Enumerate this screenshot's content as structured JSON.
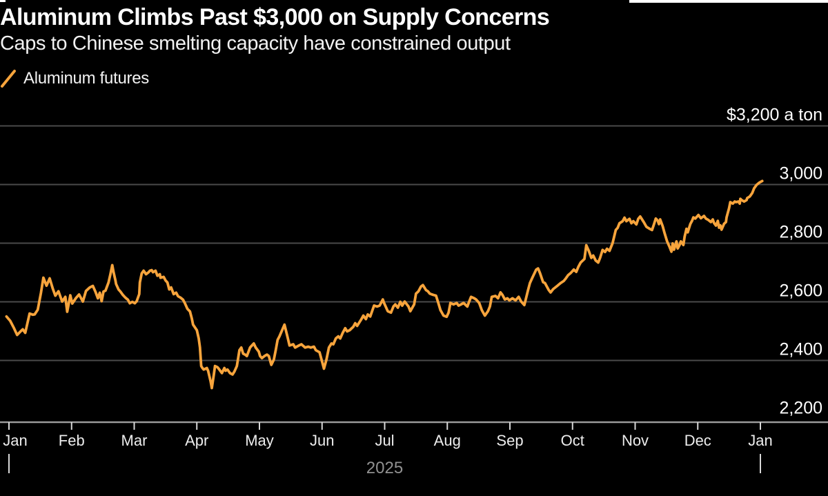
{
  "header": {
    "title": "Aluminum Climbs Past $3,000 on Supply Concerns",
    "subtitle": "Caps to Chinese smelting capacity have constrained output"
  },
  "legend": {
    "label": "Aluminum futures",
    "swatch_color": "#f7a43c"
  },
  "colors": {
    "background": "#000000",
    "line": "#f7a43c",
    "gridline": "#4a4a4a",
    "axis_line": "#9a9a9a",
    "tick_mark": "#d8d8d8",
    "y_label_text": "#ffffff",
    "month_label_text": "#ededed",
    "year_label_text": "#919191",
    "title_text": "#ffffff",
    "subtitle_text": "#f2f2f2"
  },
  "chart_data": {
    "type": "line",
    "title": "Aluminum Climbs Past $3,000 on Supply Concerns",
    "subtitle": "Caps to Chinese smelting capacity have constrained output",
    "series_name": "Aluminum futures",
    "unit_annotation": "$3,200 a ton",
    "grid": "horizontal-on",
    "legend_position": "top-left",
    "ylim": [
      2200,
      3260
    ],
    "x_unit": "months since Jan 2025 (0 = Jan 2025, 12 = Jan 2026)",
    "x_ticks": [
      "Jan",
      "Feb",
      "Mar",
      "Apr",
      "May",
      "Jun",
      "Jul",
      "Aug",
      "Sep",
      "Oct",
      "Nov",
      "Dec",
      "Jan"
    ],
    "year_label": "2025",
    "year_marker_months": [
      0,
      12
    ],
    "y_ticks": [
      {
        "value": 3200,
        "label": "$3,200 a ton"
      },
      {
        "value": 3000,
        "label": "3,000"
      },
      {
        "value": 2800,
        "label": "2,800"
      },
      {
        "value": 2600,
        "label": "2,600"
      },
      {
        "value": 2400,
        "label": "2,400"
      },
      {
        "value": 2200,
        "label": "2,200"
      }
    ],
    "points": [
      [
        -0.04,
        2550
      ],
      [
        0.02,
        2535
      ],
      [
        0.08,
        2510
      ],
      [
        0.13,
        2487
      ],
      [
        0.18,
        2498
      ],
      [
        0.22,
        2506
      ],
      [
        0.26,
        2494
      ],
      [
        0.33,
        2560
      ],
      [
        0.38,
        2556
      ],
      [
        0.41,
        2557
      ],
      [
        0.46,
        2573
      ],
      [
        0.51,
        2630
      ],
      [
        0.55,
        2682
      ],
      [
        0.6,
        2655
      ],
      [
        0.65,
        2680
      ],
      [
        0.7,
        2645
      ],
      [
        0.74,
        2621
      ],
      [
        0.79,
        2636
      ],
      [
        0.85,
        2601
      ],
      [
        0.9,
        2617
      ],
      [
        0.93,
        2566
      ],
      [
        0.98,
        2622
      ],
      [
        1.01,
        2594
      ],
      [
        1.07,
        2613
      ],
      [
        1.12,
        2625
      ],
      [
        1.18,
        2601
      ],
      [
        1.23,
        2637
      ],
      [
        1.29,
        2649
      ],
      [
        1.34,
        2654
      ],
      [
        1.38,
        2635
      ],
      [
        1.42,
        2612
      ],
      [
        1.45,
        2631
      ],
      [
        1.48,
        2602
      ],
      [
        1.51,
        2635
      ],
      [
        1.54,
        2638
      ],
      [
        1.59,
        2666
      ],
      [
        1.62,
        2694
      ],
      [
        1.65,
        2725
      ],
      [
        1.67,
        2701
      ],
      [
        1.7,
        2673
      ],
      [
        1.71,
        2661
      ],
      [
        1.75,
        2642
      ],
      [
        1.78,
        2635
      ],
      [
        1.82,
        2623
      ],
      [
        1.86,
        2614
      ],
      [
        1.9,
        2607
      ],
      [
        1.93,
        2595
      ],
      [
        1.97,
        2600
      ],
      [
        2.01,
        2595
      ],
      [
        2.04,
        2602
      ],
      [
        2.08,
        2626
      ],
      [
        2.09,
        2666
      ],
      [
        2.12,
        2697
      ],
      [
        2.15,
        2706
      ],
      [
        2.19,
        2694
      ],
      [
        2.23,
        2701
      ],
      [
        2.25,
        2706
      ],
      [
        2.28,
        2708
      ],
      [
        2.3,
        2701
      ],
      [
        2.34,
        2706
      ],
      [
        2.37,
        2689
      ],
      [
        2.41,
        2694
      ],
      [
        2.42,
        2682
      ],
      [
        2.47,
        2685
      ],
      [
        2.5,
        2673
      ],
      [
        2.53,
        2666
      ],
      [
        2.56,
        2642
      ],
      [
        2.59,
        2649
      ],
      [
        2.63,
        2626
      ],
      [
        2.67,
        2631
      ],
      [
        2.7,
        2619
      ],
      [
        2.74,
        2614
      ],
      [
        2.78,
        2607
      ],
      [
        2.81,
        2595
      ],
      [
        2.85,
        2576
      ],
      [
        2.89,
        2567
      ],
      [
        2.92,
        2543
      ],
      [
        2.94,
        2522
      ],
      [
        3.0,
        2503
      ],
      [
        3.03,
        2475
      ],
      [
        3.05,
        2444
      ],
      [
        3.07,
        2381
      ],
      [
        3.09,
        2374
      ],
      [
        3.11,
        2369
      ],
      [
        3.16,
        2374
      ],
      [
        3.18,
        2365
      ],
      [
        3.22,
        2329
      ],
      [
        3.24,
        2306
      ],
      [
        3.27,
        2350
      ],
      [
        3.29,
        2381
      ],
      [
        3.33,
        2377
      ],
      [
        3.36,
        2369
      ],
      [
        3.4,
        2357
      ],
      [
        3.44,
        2374
      ],
      [
        3.46,
        2365
      ],
      [
        3.49,
        2369
      ],
      [
        3.53,
        2357
      ],
      [
        3.57,
        2352
      ],
      [
        3.6,
        2362
      ],
      [
        3.64,
        2381
      ],
      [
        3.68,
        2435
      ],
      [
        3.71,
        2444
      ],
      [
        3.74,
        2423
      ],
      [
        3.77,
        2420
      ],
      [
        3.8,
        2415
      ],
      [
        3.85,
        2444
      ],
      [
        3.88,
        2451
      ],
      [
        3.91,
        2458
      ],
      [
        3.94,
        2444
      ],
      [
        3.99,
        2430
      ],
      [
        4.01,
        2415
      ],
      [
        4.04,
        2408
      ],
      [
        4.08,
        2415
      ],
      [
        4.12,
        2420
      ],
      [
        4.15,
        2415
      ],
      [
        4.19,
        2385
      ],
      [
        4.23,
        2403
      ],
      [
        4.26,
        2435
      ],
      [
        4.29,
        2470
      ],
      [
        4.32,
        2482
      ],
      [
        4.4,
        2522
      ],
      [
        4.45,
        2479
      ],
      [
        4.48,
        2451
      ],
      [
        4.54,
        2455
      ],
      [
        4.57,
        2444
      ],
      [
        4.63,
        2451
      ],
      [
        4.67,
        2455
      ],
      [
        4.73,
        2444
      ],
      [
        4.78,
        2447
      ],
      [
        4.82,
        2444
      ],
      [
        4.87,
        2447
      ],
      [
        4.9,
        2435
      ],
      [
        4.96,
        2428
      ],
      [
        5.0,
        2396
      ],
      [
        5.03,
        2372
      ],
      [
        5.07,
        2403
      ],
      [
        5.11,
        2444
      ],
      [
        5.15,
        2458
      ],
      [
        5.18,
        2455
      ],
      [
        5.22,
        2475
      ],
      [
        5.26,
        2482
      ],
      [
        5.29,
        2475
      ],
      [
        5.33,
        2494
      ],
      [
        5.37,
        2510
      ],
      [
        5.4,
        2499
      ],
      [
        5.44,
        2503
      ],
      [
        5.5,
        2515
      ],
      [
        5.53,
        2527
      ],
      [
        5.56,
        2518
      ],
      [
        5.62,
        2538
      ],
      [
        5.66,
        2553
      ],
      [
        5.7,
        2541
      ],
      [
        5.73,
        2557
      ],
      [
        5.77,
        2550
      ],
      [
        5.83,
        2587
      ],
      [
        5.88,
        2584
      ],
      [
        5.92,
        2587
      ],
      [
        5.97,
        2608
      ],
      [
        5.99,
        2596
      ],
      [
        6.05,
        2568
      ],
      [
        6.1,
        2563
      ],
      [
        6.14,
        2584
      ],
      [
        6.17,
        2591
      ],
      [
        6.21,
        2580
      ],
      [
        6.25,
        2600
      ],
      [
        6.28,
        2587
      ],
      [
        6.32,
        2601
      ],
      [
        6.38,
        2584
      ],
      [
        6.41,
        2568
      ],
      [
        6.47,
        2591
      ],
      [
        6.5,
        2628
      ],
      [
        6.54,
        2636
      ],
      [
        6.58,
        2652
      ],
      [
        6.61,
        2657
      ],
      [
        6.66,
        2640
      ],
      [
        6.69,
        2636
      ],
      [
        6.72,
        2628
      ],
      [
        6.77,
        2624
      ],
      [
        6.82,
        2621
      ],
      [
        6.85,
        2601
      ],
      [
        6.89,
        2572
      ],
      [
        6.94,
        2553
      ],
      [
        6.99,
        2549
      ],
      [
        7.02,
        2563
      ],
      [
        7.05,
        2596
      ],
      [
        7.1,
        2591
      ],
      [
        7.15,
        2596
      ],
      [
        7.18,
        2587
      ],
      [
        7.22,
        2591
      ],
      [
        7.26,
        2596
      ],
      [
        7.32,
        2584
      ],
      [
        7.35,
        2601
      ],
      [
        7.38,
        2617
      ],
      [
        7.43,
        2612
      ],
      [
        7.46,
        2608
      ],
      [
        7.51,
        2596
      ],
      [
        7.55,
        2572
      ],
      [
        7.6,
        2553
      ],
      [
        7.65,
        2568
      ],
      [
        7.68,
        2584
      ],
      [
        7.71,
        2617
      ],
      [
        7.77,
        2620
      ],
      [
        7.81,
        2612
      ],
      [
        7.85,
        2632
      ],
      [
        7.88,
        2624
      ],
      [
        7.92,
        2608
      ],
      [
        7.96,
        2612
      ],
      [
        7.99,
        2605
      ],
      [
        8.04,
        2612
      ],
      [
        8.09,
        2605
      ],
      [
        8.14,
        2617
      ],
      [
        8.18,
        2601
      ],
      [
        8.23,
        2589
      ],
      [
        8.29,
        2640
      ],
      [
        8.32,
        2664
      ],
      [
        8.36,
        2683
      ],
      [
        8.42,
        2710
      ],
      [
        8.45,
        2714
      ],
      [
        8.48,
        2698
      ],
      [
        8.53,
        2667
      ],
      [
        8.56,
        2664
      ],
      [
        8.62,
        2640
      ],
      [
        8.65,
        2632
      ],
      [
        8.69,
        2643
      ],
      [
        8.73,
        2650
      ],
      [
        8.76,
        2655
      ],
      [
        8.81,
        2664
      ],
      [
        8.86,
        2671
      ],
      [
        8.89,
        2679
      ],
      [
        8.93,
        2691
      ],
      [
        8.97,
        2698
      ],
      [
        9.02,
        2710
      ],
      [
        9.06,
        2702
      ],
      [
        9.09,
        2718
      ],
      [
        9.13,
        2734
      ],
      [
        9.19,
        2746
      ],
      [
        9.22,
        2793
      ],
      [
        9.26,
        2774
      ],
      [
        9.3,
        2750
      ],
      [
        9.33,
        2758
      ],
      [
        9.37,
        2741
      ],
      [
        9.41,
        2734
      ],
      [
        9.44,
        2750
      ],
      [
        9.48,
        2777
      ],
      [
        9.52,
        2770
      ],
      [
        9.55,
        2781
      ],
      [
        9.59,
        2774
      ],
      [
        9.64,
        2800
      ],
      [
        9.69,
        2845
      ],
      [
        9.72,
        2852
      ],
      [
        9.75,
        2868
      ],
      [
        9.8,
        2875
      ],
      [
        9.83,
        2887
      ],
      [
        9.86,
        2875
      ],
      [
        9.91,
        2883
      ],
      [
        9.94,
        2868
      ],
      [
        9.97,
        2875
      ],
      [
        10.02,
        2864
      ],
      [
        10.05,
        2883
      ],
      [
        10.08,
        2891
      ],
      [
        10.14,
        2871
      ],
      [
        10.18,
        2856
      ],
      [
        10.24,
        2848
      ],
      [
        10.27,
        2845
      ],
      [
        10.3,
        2864
      ],
      [
        10.33,
        2884
      ],
      [
        10.36,
        2877
      ],
      [
        10.38,
        2865
      ],
      [
        10.4,
        2881
      ],
      [
        10.44,
        2858
      ],
      [
        10.47,
        2834
      ],
      [
        10.51,
        2806
      ],
      [
        10.55,
        2787
      ],
      [
        10.58,
        2771
      ],
      [
        10.6,
        2799
      ],
      [
        10.62,
        2778
      ],
      [
        10.66,
        2806
      ],
      [
        10.68,
        2782
      ],
      [
        10.71,
        2794
      ],
      [
        10.73,
        2806
      ],
      [
        10.77,
        2794
      ],
      [
        10.79,
        2822
      ],
      [
        10.82,
        2849
      ],
      [
        10.84,
        2837
      ],
      [
        10.88,
        2865
      ],
      [
        10.91,
        2877
      ],
      [
        10.93,
        2888
      ],
      [
        10.96,
        2884
      ],
      [
        11.01,
        2896
      ],
      [
        11.05,
        2885
      ],
      [
        11.1,
        2893
      ],
      [
        11.13,
        2884
      ],
      [
        11.17,
        2879
      ],
      [
        11.21,
        2872
      ],
      [
        11.24,
        2881
      ],
      [
        11.26,
        2869
      ],
      [
        11.29,
        2860
      ],
      [
        11.32,
        2876
      ],
      [
        11.34,
        2853
      ],
      [
        11.36,
        2861
      ],
      [
        11.38,
        2846
      ],
      [
        11.42,
        2866
      ],
      [
        11.45,
        2872
      ],
      [
        11.46,
        2888
      ],
      [
        11.5,
        2919
      ],
      [
        11.52,
        2940
      ],
      [
        11.56,
        2935
      ],
      [
        11.59,
        2942
      ],
      [
        11.61,
        2940
      ],
      [
        11.65,
        2942
      ],
      [
        11.67,
        2935
      ],
      [
        11.68,
        2951
      ],
      [
        11.7,
        2947
      ],
      [
        11.74,
        2942
      ],
      [
        11.78,
        2947
      ],
      [
        11.79,
        2954
      ],
      [
        11.83,
        2959
      ],
      [
        11.87,
        2971
      ],
      [
        11.9,
        2987
      ],
      [
        11.94,
        2999
      ],
      [
        11.98,
        3006
      ],
      [
        12.03,
        3012
      ]
    ]
  }
}
